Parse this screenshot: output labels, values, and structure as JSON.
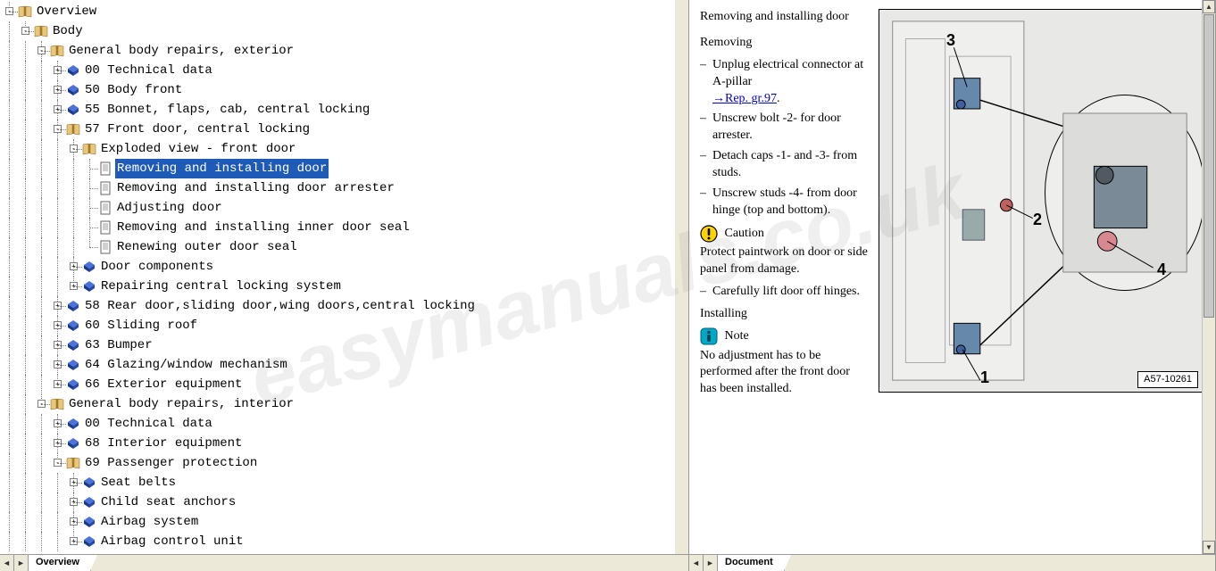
{
  "watermark": "easymanuals.co.uk",
  "tabs": {
    "left": "Overview",
    "right": "Document"
  },
  "tree": [
    {
      "d": 0,
      "exp": "-",
      "icon": "book-open",
      "label": "Overview"
    },
    {
      "d": 1,
      "exp": "-",
      "icon": "book-open",
      "label": "Body"
    },
    {
      "d": 2,
      "exp": "-",
      "icon": "book-open",
      "label": "General body repairs, exterior"
    },
    {
      "d": 3,
      "exp": "+",
      "icon": "diamond",
      "label": "00 Technical data"
    },
    {
      "d": 3,
      "exp": "+",
      "icon": "diamond",
      "label": "50 Body front"
    },
    {
      "d": 3,
      "exp": "+",
      "icon": "diamond",
      "label": "55 Bonnet, flaps, cab, central locking"
    },
    {
      "d": 3,
      "exp": "-",
      "icon": "book-open",
      "label": "57 Front door, central locking"
    },
    {
      "d": 4,
      "exp": "-",
      "icon": "book-open",
      "label": "Exploded view - front door"
    },
    {
      "d": 5,
      "exp": "",
      "icon": "page",
      "label": "Removing and installing door",
      "selected": true
    },
    {
      "d": 5,
      "exp": "",
      "icon": "page",
      "label": "Removing and installing door arrester"
    },
    {
      "d": 5,
      "exp": "",
      "icon": "page",
      "label": "Adjusting door"
    },
    {
      "d": 5,
      "exp": "",
      "icon": "page",
      "label": "Removing and installing inner door seal"
    },
    {
      "d": 5,
      "exp": "",
      "icon": "page",
      "label": "Renewing outer door seal"
    },
    {
      "d": 4,
      "exp": "+",
      "icon": "diamond",
      "label": "Door components"
    },
    {
      "d": 4,
      "exp": "+",
      "icon": "diamond",
      "label": "Repairing central locking system"
    },
    {
      "d": 3,
      "exp": "+",
      "icon": "diamond",
      "label": "58 Rear door,sliding door,wing doors,central locking"
    },
    {
      "d": 3,
      "exp": "+",
      "icon": "diamond",
      "label": "60 Sliding roof"
    },
    {
      "d": 3,
      "exp": "+",
      "icon": "diamond",
      "label": "63 Bumper"
    },
    {
      "d": 3,
      "exp": "+",
      "icon": "diamond",
      "label": "64 Glazing/window mechanism"
    },
    {
      "d": 3,
      "exp": "+",
      "icon": "diamond",
      "label": "66 Exterior equipment"
    },
    {
      "d": 2,
      "exp": "-",
      "icon": "book-open",
      "label": "General body repairs, interior"
    },
    {
      "d": 3,
      "exp": "+",
      "icon": "diamond",
      "label": "00 Technical data"
    },
    {
      "d": 3,
      "exp": "+",
      "icon": "diamond",
      "label": "68 Interior equipment"
    },
    {
      "d": 3,
      "exp": "-",
      "icon": "book-open",
      "label": "69 Passenger protection"
    },
    {
      "d": 4,
      "exp": "+",
      "icon": "diamond",
      "label": "Seat belts"
    },
    {
      "d": 4,
      "exp": "+",
      "icon": "diamond",
      "label": "Child seat anchors"
    },
    {
      "d": 4,
      "exp": "+",
      "icon": "diamond",
      "label": "Airbag system"
    },
    {
      "d": 4,
      "exp": "+",
      "icon": "diamond",
      "label": "Airbag control unit"
    }
  ],
  "doc": {
    "title": "Removing and installing door",
    "sec1": "Removing",
    "steps1": [
      {
        "text": "Unplug electrical connector at A-pillar",
        "link": "→Rep. gr.97",
        "suffix": "."
      },
      {
        "text": "Unscrew bolt -2- for door arrester."
      },
      {
        "text": "Detach caps -1- and -3- from studs."
      },
      {
        "text": "Unscrew studs -4- from door hinge (top and bottom)."
      }
    ],
    "caution_label": "Caution",
    "caution_text": "Protect paintwork on door or side panel from damage.",
    "step_after": "Carefully lift door off hinges.",
    "sec2": "Installing",
    "note_label": "Note",
    "note_text": "No adjustment has to be performed after the front door has been installed.",
    "figure_ref": "A57-10261",
    "figure_labels": [
      "1",
      "2",
      "3",
      "4"
    ]
  },
  "colors": {
    "selection": "#1e5ab8",
    "diamond_top": "#3a5fcd",
    "diamond_side": "#1a3a8a",
    "book": "#c8a030",
    "caution_bg": "#ffd400",
    "note_bg": "#00a8c8"
  }
}
